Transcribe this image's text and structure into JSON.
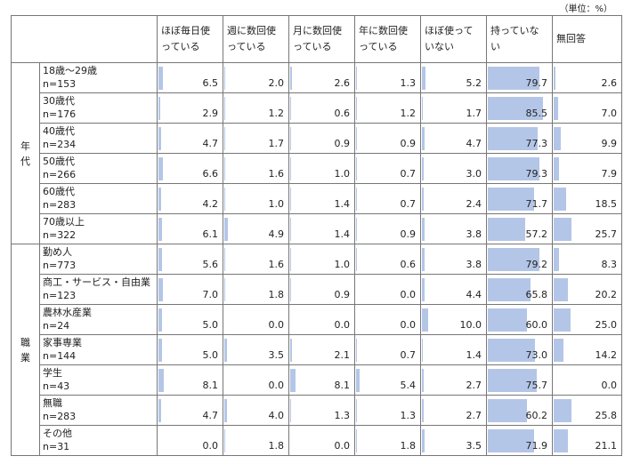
{
  "unit_label": "（単位：%）",
  "chart_data": {
    "type": "table",
    "columns": [
      "ほぼ毎日使っている",
      "週に数回使っている",
      "月に数回使っている",
      "年に数回使っている",
      "ほぼ使っていない",
      "持っていない",
      "無回答"
    ],
    "groups": [
      {
        "name": "年代",
        "rows": [
          {
            "label": "18歳～29歳",
            "n": "n=153",
            "values": [
              6.5,
              2.0,
              2.6,
              1.3,
              5.2,
              79.7,
              2.6
            ]
          },
          {
            "label": "30歳代",
            "n": "n=176",
            "values": [
              2.9,
              1.2,
              0.6,
              1.2,
              1.7,
              85.5,
              7.0
            ]
          },
          {
            "label": "40歳代",
            "n": "n=234",
            "values": [
              4.7,
              1.7,
              0.9,
              0.9,
              4.7,
              77.3,
              9.9
            ]
          },
          {
            "label": "50歳代",
            "n": "n=266",
            "values": [
              6.6,
              1.6,
              1.0,
              0.7,
              3.0,
              79.3,
              7.9
            ]
          },
          {
            "label": "60歳代",
            "n": "n=283",
            "values": [
              4.2,
              1.0,
              1.4,
              0.7,
              2.4,
              71.7,
              18.5
            ]
          },
          {
            "label": "70歳以上",
            "n": "n=322",
            "values": [
              6.1,
              4.9,
              1.4,
              0.9,
              3.8,
              57.2,
              25.7
            ]
          }
        ]
      },
      {
        "name": "職業",
        "rows": [
          {
            "label": "勤め人",
            "n": "n=773",
            "values": [
              5.6,
              1.6,
              1.0,
              0.6,
              3.8,
              79.2,
              8.3
            ]
          },
          {
            "label": "商工・サービス・自由業",
            "n": "n=123",
            "values": [
              7.0,
              1.8,
              0.9,
              0.0,
              4.4,
              65.8,
              20.2
            ]
          },
          {
            "label": "農林水産業",
            "n": "n=24",
            "values": [
              5.0,
              0.0,
              0.0,
              0.0,
              10.0,
              60.0,
              25.0
            ]
          },
          {
            "label": "家事専業",
            "n": "n=144",
            "values": [
              5.0,
              3.5,
              2.1,
              0.7,
              1.4,
              73.0,
              14.2
            ]
          },
          {
            "label": "学生",
            "n": "n=43",
            "values": [
              8.1,
              0.0,
              8.1,
              5.4,
              2.7,
              75.7,
              0.0
            ]
          },
          {
            "label": "無職",
            "n": "n=283",
            "values": [
              4.7,
              4.0,
              1.3,
              1.3,
              2.7,
              60.2,
              25.8
            ]
          },
          {
            "label": "その他",
            "n": "n=31",
            "values": [
              0.0,
              1.8,
              0.0,
              1.8,
              3.5,
              71.9,
              21.1
            ]
          }
        ]
      }
    ]
  }
}
